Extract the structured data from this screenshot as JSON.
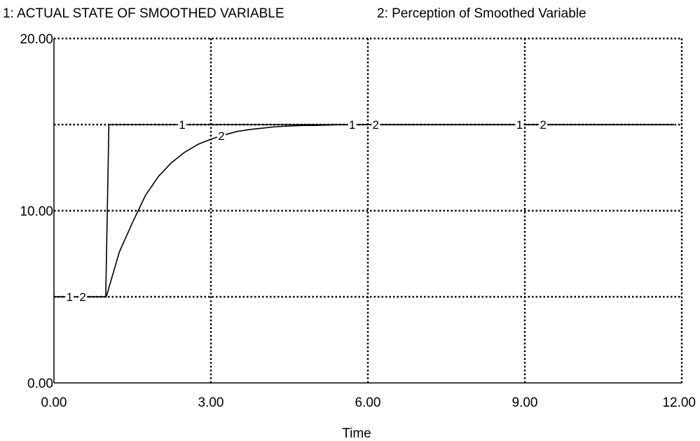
{
  "chart_data": {
    "type": "line",
    "title": "",
    "xlabel": "Time",
    "ylabel": "",
    "xlim": [
      0,
      12
    ],
    "ylim": [
      0,
      20
    ],
    "x_tick_labels": [
      "0.00",
      "3.00",
      "6.00",
      "9.00",
      "12.00"
    ],
    "y_tick_labels": [
      "0.00",
      "10.00",
      "20.00"
    ],
    "grid": true,
    "legend_position": "top",
    "series": [
      {
        "name": "ACTUAL STATE OF SMOOTHED VARIABLE",
        "marker": "1",
        "legend_label": "1: ACTUAL STATE OF SMOOTHED VARIABLE",
        "x": [
          0,
          0.99,
          1.05,
          1.5,
          2,
          2.5,
          3,
          3.5,
          4,
          4.5,
          5,
          5.5,
          6,
          7,
          8,
          9,
          10,
          11,
          11.85
        ],
        "values": [
          5,
          5,
          15,
          15,
          15,
          15,
          15,
          15,
          15,
          15,
          15,
          15,
          15,
          15,
          15,
          15,
          15,
          15,
          15
        ]
      },
      {
        "name": "Perception of Smoothed Variable",
        "marker": "2",
        "legend_label": "2: Perception of Smoothed Variable",
        "x": [
          0,
          1,
          1.25,
          1.5,
          1.75,
          2,
          2.25,
          2.5,
          2.75,
          3,
          3.25,
          3.5,
          3.75,
          4,
          4.25,
          4.5,
          4.75,
          5,
          5.5,
          6,
          7,
          8,
          9,
          10,
          11,
          11.85
        ],
        "values": [
          5,
          5,
          7.6,
          9.3,
          10.9,
          12.0,
          12.8,
          13.4,
          13.85,
          14.15,
          14.4,
          14.6,
          14.72,
          14.8,
          14.88,
          14.92,
          14.95,
          14.95,
          15.0,
          15.0,
          15.0,
          15.0,
          15.0,
          15.0,
          15.0,
          15.0
        ]
      }
    ],
    "series_markers": [
      {
        "series": 0,
        "x": 0.3,
        "label": "1"
      },
      {
        "series": 1,
        "x": 0.55,
        "label": "2"
      },
      {
        "series": 0,
        "x": 2.45,
        "label": "1"
      },
      {
        "series": 1,
        "x": 3.2,
        "label": "2"
      },
      {
        "series": 0,
        "x": 5.7,
        "label": "1"
      },
      {
        "series": 1,
        "x": 6.15,
        "label": "2"
      },
      {
        "series": 0,
        "x": 8.9,
        "label": "1"
      },
      {
        "series": 1,
        "x": 9.35,
        "label": "2"
      }
    ]
  }
}
